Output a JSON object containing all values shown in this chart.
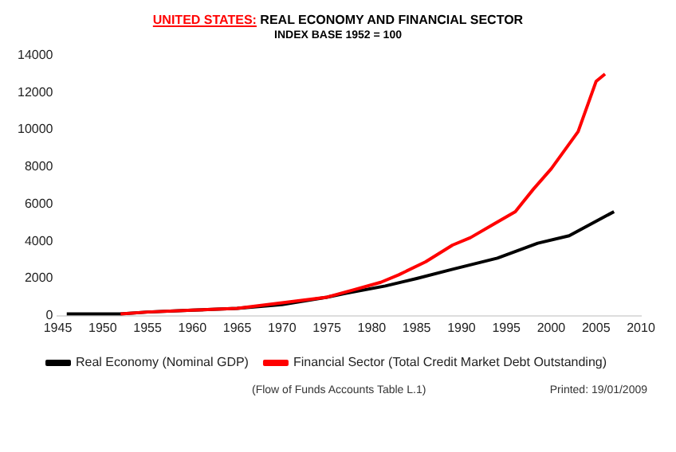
{
  "chart_data": {
    "type": "line",
    "title": "UNITED STATES: REAL ECONOMY AND FINANCIAL SECTOR",
    "subtitle": "INDEX BASE 1952 = 100",
    "series": [
      {
        "name": "Real Economy (Nominal GDP)",
        "color": "#000000",
        "x": [
          1946,
          1950,
          1952,
          1955,
          1960,
          1965,
          1970,
          1975,
          1977,
          1981.5,
          1985,
          1989,
          1994,
          1998.5,
          2002,
          2007
        ],
        "values": [
          100,
          100,
          100,
          200,
          300,
          400,
          600,
          1000,
          1200,
          1600,
          2000,
          2500,
          3100,
          3900,
          4300,
          5600
        ]
      },
      {
        "name": "Financial Sector (Total Credit Market Debt Outstanding)",
        "color": "#ff0000",
        "x": [
          1952,
          1955,
          1960,
          1965,
          1970,
          1975,
          1978,
          1981,
          1983,
          1986,
          1989,
          1991,
          1993.5,
          1996,
          1998,
          2000,
          2003,
          2005,
          2006
        ],
        "values": [
          100,
          200,
          300,
          400,
          700,
          1000,
          1400,
          1800,
          2200,
          2900,
          3800,
          4200,
          4900,
          5600,
          6800,
          7900,
          9900,
          12600,
          13000
        ]
      }
    ],
    "xlim": [
      1945,
      2010
    ],
    "xticks": [
      1945,
      1950,
      1955,
      1960,
      1965,
      1970,
      1975,
      1980,
      1985,
      1990,
      1995,
      2000,
      2005,
      2010
    ],
    "ylim": [
      0,
      14000
    ],
    "yticks": [
      0,
      2000,
      4000,
      6000,
      8000,
      10000,
      12000,
      14000
    ],
    "grid": false,
    "legend": "bottom",
    "marker": "none",
    "line_style": "solid",
    "annotations": [
      "(Flow of Funds Accounts Table L.1)",
      "Printed: 19/01/2009"
    ]
  }
}
